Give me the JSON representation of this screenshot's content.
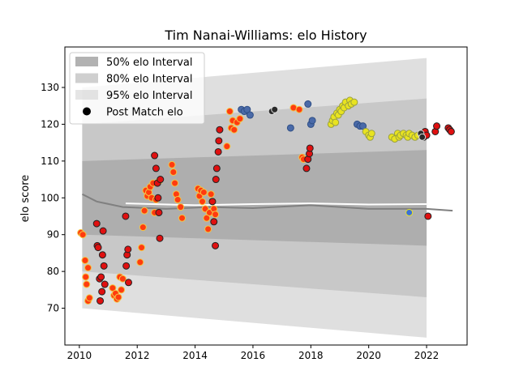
{
  "chart_data": {
    "type": "scatter",
    "title": "Tim Nanai-Williams: elo History",
    "xlabel": "",
    "ylabel": "elo score",
    "xlim": [
      2009.5,
      2023.4
    ],
    "ylim": [
      60,
      141
    ],
    "x_ticks": [
      2010,
      2012,
      2014,
      2016,
      2018,
      2020,
      2022
    ],
    "x_tick_labels": [
      "2010",
      "2012",
      "2014",
      "2016",
      "2018",
      "2020",
      "2022"
    ],
    "y_ticks": [
      70,
      80,
      90,
      100,
      110,
      120,
      130
    ],
    "y_tick_labels": [
      "70",
      "80",
      "90",
      "100",
      "110",
      "120",
      "130"
    ],
    "grid": false,
    "legend": {
      "position": "top-left",
      "entries": [
        {
          "label": "50% elo Interval",
          "kind": "band",
          "color": "#7f7f7f",
          "opacity": 0.6
        },
        {
          "label": "80% elo Interval",
          "kind": "band",
          "color": "#a8a8a8",
          "opacity": 0.55
        },
        {
          "label": "95% elo Interval",
          "kind": "band",
          "color": "#cfcfcf",
          "opacity": 0.55
        },
        {
          "label": "Post Match elo",
          "kind": "marker",
          "color": "#000000"
        }
      ]
    },
    "bands": {
      "x_range": [
        2010.1,
        2022.0
      ],
      "interval_95": {
        "lower": [
          70.0,
          62.0
        ],
        "upper": [
          130.0,
          138.0
        ],
        "color": "#d9d9d9"
      },
      "interval_80": {
        "lower": [
          80.0,
          73.0
        ],
        "upper": [
          120.0,
          127.0
        ],
        "color": "#c4c4c4"
      },
      "interval_50": {
        "lower": [
          90.0,
          87.0
        ],
        "upper": [
          110.0,
          113.0
        ],
        "color": "#a9a9a9"
      }
    },
    "mean_lines": [
      {
        "name": "",
        "color": "#808080",
        "points": [
          [
            2010.1,
            101.0
          ],
          [
            2010.6,
            99.0
          ],
          [
            2011.5,
            97.5
          ],
          [
            2013.0,
            97.0
          ],
          [
            2014.5,
            97.5
          ],
          [
            2016.0,
            97.2
          ],
          [
            2018.0,
            98.0
          ],
          [
            2020.0,
            97.0
          ],
          [
            2022.0,
            97.0
          ],
          [
            2022.9,
            96.5
          ]
        ]
      },
      {
        "name": "",
        "color": "#ffffff",
        "points": [
          [
            2011.6,
            98.5
          ],
          [
            2014.0,
            98.0
          ],
          [
            2016.0,
            98.3
          ],
          [
            2018.0,
            98.5
          ],
          [
            2020.0,
            98.2
          ],
          [
            2022.0,
            98.3
          ]
        ]
      }
    ],
    "series": [
      {
        "name": "",
        "fill": "#ff3b0f",
        "edge": "#f5c542",
        "points": [
          [
            2010.05,
            90.5
          ],
          [
            2010.12,
            90.0
          ],
          [
            2010.2,
            83.0
          ],
          [
            2010.22,
            78.5
          ],
          [
            2010.25,
            76.5
          ],
          [
            2010.3,
            81.0
          ],
          [
            2010.3,
            72.0
          ],
          [
            2010.35,
            72.8
          ],
          [
            2011.15,
            75.5
          ],
          [
            2011.2,
            73.5
          ],
          [
            2011.25,
            74.0
          ],
          [
            2011.3,
            72.5
          ],
          [
            2011.35,
            73.0
          ],
          [
            2011.4,
            78.5
          ],
          [
            2011.45,
            75.0
          ],
          [
            2011.5,
            78.0
          ],
          [
            2012.1,
            82.5
          ],
          [
            2012.15,
            86.5
          ],
          [
            2012.2,
            92.0
          ],
          [
            2012.25,
            96.5
          ],
          [
            2012.3,
            102.0
          ],
          [
            2012.35,
            100.5
          ],
          [
            2012.4,
            101.5
          ],
          [
            2012.45,
            103.0
          ],
          [
            2012.5,
            100.0
          ],
          [
            2012.55,
            104.0
          ],
          [
            2012.6,
            96.0
          ],
          [
            2012.65,
            99.5
          ],
          [
            2012.75,
            104.5
          ],
          [
            2013.2,
            109.0
          ],
          [
            2013.25,
            107.0
          ],
          [
            2013.3,
            104.0
          ],
          [
            2013.35,
            101.0
          ],
          [
            2013.4,
            99.5
          ],
          [
            2013.5,
            97.5
          ],
          [
            2013.55,
            94.5
          ],
          [
            2014.1,
            102.5
          ],
          [
            2014.15,
            100.5
          ],
          [
            2014.2,
            102.0
          ],
          [
            2014.25,
            99.0
          ],
          [
            2014.3,
            101.5
          ],
          [
            2014.35,
            97.0
          ],
          [
            2014.4,
            94.5
          ],
          [
            2014.45,
            91.5
          ],
          [
            2014.5,
            96.0
          ],
          [
            2014.55,
            101.0
          ],
          [
            2014.6,
            99.0
          ],
          [
            2014.65,
            97.0
          ],
          [
            2014.7,
            95.5
          ],
          [
            2015.1,
            114.0
          ],
          [
            2015.2,
            123.5
          ],
          [
            2015.25,
            119.0
          ],
          [
            2015.3,
            121.0
          ],
          [
            2015.35,
            118.5
          ],
          [
            2015.45,
            120.5
          ],
          [
            2015.55,
            121.5
          ],
          [
            2017.4,
            124.5
          ],
          [
            2017.6,
            124.0
          ],
          [
            2017.7,
            111.0
          ],
          [
            2017.75,
            110.5
          ]
        ]
      },
      {
        "name": "",
        "fill": "#e01010",
        "edge": "#222222",
        "points": [
          [
            2010.6,
            93.0
          ],
          [
            2010.62,
            87.0
          ],
          [
            2010.65,
            86.5
          ],
          [
            2010.7,
            78.0
          ],
          [
            2010.72,
            72.0
          ],
          [
            2010.75,
            78.5
          ],
          [
            2010.78,
            74.5
          ],
          [
            2010.8,
            84.5
          ],
          [
            2010.82,
            91.0
          ],
          [
            2010.85,
            81.5
          ],
          [
            2010.88,
            76.5
          ],
          [
            2011.6,
            95.0
          ],
          [
            2011.62,
            81.5
          ],
          [
            2011.65,
            84.5
          ],
          [
            2011.68,
            86.0
          ],
          [
            2011.7,
            77.0
          ],
          [
            2012.6,
            111.5
          ],
          [
            2012.65,
            108.0
          ],
          [
            2012.7,
            104.0
          ],
          [
            2012.72,
            100.0
          ],
          [
            2012.75,
            96.0
          ],
          [
            2012.8,
            105.0
          ],
          [
            2012.78,
            89.0
          ],
          [
            2014.6,
            99.0
          ],
          [
            2014.65,
            93.5
          ],
          [
            2014.7,
            87.0
          ],
          [
            2014.72,
            105.0
          ],
          [
            2014.75,
            108.0
          ],
          [
            2014.8,
            112.5
          ],
          [
            2014.82,
            115.5
          ],
          [
            2014.85,
            118.5
          ],
          [
            2017.85,
            108.0
          ],
          [
            2017.9,
            110.5
          ],
          [
            2017.95,
            112.0
          ],
          [
            2017.97,
            113.5
          ],
          [
            2021.9,
            116.5
          ],
          [
            2021.95,
            118.0
          ],
          [
            2022.0,
            117.0
          ],
          [
            2022.05,
            95.0
          ],
          [
            2022.3,
            118.0
          ],
          [
            2022.35,
            119.5
          ],
          [
            2022.75,
            119.0
          ],
          [
            2022.8,
            118.5
          ],
          [
            2022.85,
            118.0
          ]
        ]
      },
      {
        "name": "",
        "fill": "#4a6aa8",
        "edge": "#2f4f86",
        "points": [
          [
            2015.6,
            124.0
          ],
          [
            2015.7,
            123.5
          ],
          [
            2015.8,
            124.0
          ],
          [
            2015.9,
            122.5
          ],
          [
            2017.3,
            119.0
          ],
          [
            2017.9,
            125.5
          ],
          [
            2018.0,
            120.0
          ],
          [
            2018.05,
            121.0
          ],
          [
            2019.6,
            120.0
          ],
          [
            2019.7,
            119.5
          ],
          [
            2019.8,
            119.5
          ]
        ]
      },
      {
        "name": "",
        "fill": "#e8e320",
        "edge": "#9aa040",
        "points": [
          [
            2018.7,
            120.0
          ],
          [
            2018.75,
            121.0
          ],
          [
            2018.8,
            122.0
          ],
          [
            2018.85,
            120.5
          ],
          [
            2018.9,
            123.0
          ],
          [
            2018.95,
            122.5
          ],
          [
            2019.0,
            124.0
          ],
          [
            2019.05,
            123.5
          ],
          [
            2019.1,
            125.0
          ],
          [
            2019.15,
            124.5
          ],
          [
            2019.2,
            126.0
          ],
          [
            2019.3,
            125.0
          ],
          [
            2019.35,
            126.5
          ],
          [
            2019.4,
            125.5
          ],
          [
            2019.5,
            126.0
          ],
          [
            2019.9,
            118.0
          ],
          [
            2020.0,
            117.0
          ],
          [
            2020.05,
            116.5
          ],
          [
            2020.1,
            117.5
          ],
          [
            2020.8,
            116.5
          ],
          [
            2020.9,
            116.0
          ],
          [
            2021.0,
            117.5
          ],
          [
            2021.05,
            116.5
          ],
          [
            2021.1,
            117.0
          ],
          [
            2021.2,
            117.5
          ],
          [
            2021.3,
            117.0
          ],
          [
            2021.35,
            116.5
          ],
          [
            2021.4,
            117.5
          ],
          [
            2021.5,
            117.0
          ],
          [
            2021.6,
            116.5
          ],
          [
            2021.7,
            117.0
          ]
        ]
      },
      {
        "name": "",
        "fill": "#2a2a2a",
        "edge": "#dddddd",
        "points": [
          [
            2016.65,
            123.5
          ],
          [
            2016.75,
            124.0
          ],
          [
            2021.8,
            117.5
          ],
          [
            2021.85,
            116.5
          ]
        ]
      },
      {
        "name": "",
        "fill": "#3a6fd8",
        "edge": "#e8e320",
        "points": [
          [
            2021.4,
            96.0
          ]
        ]
      }
    ]
  }
}
